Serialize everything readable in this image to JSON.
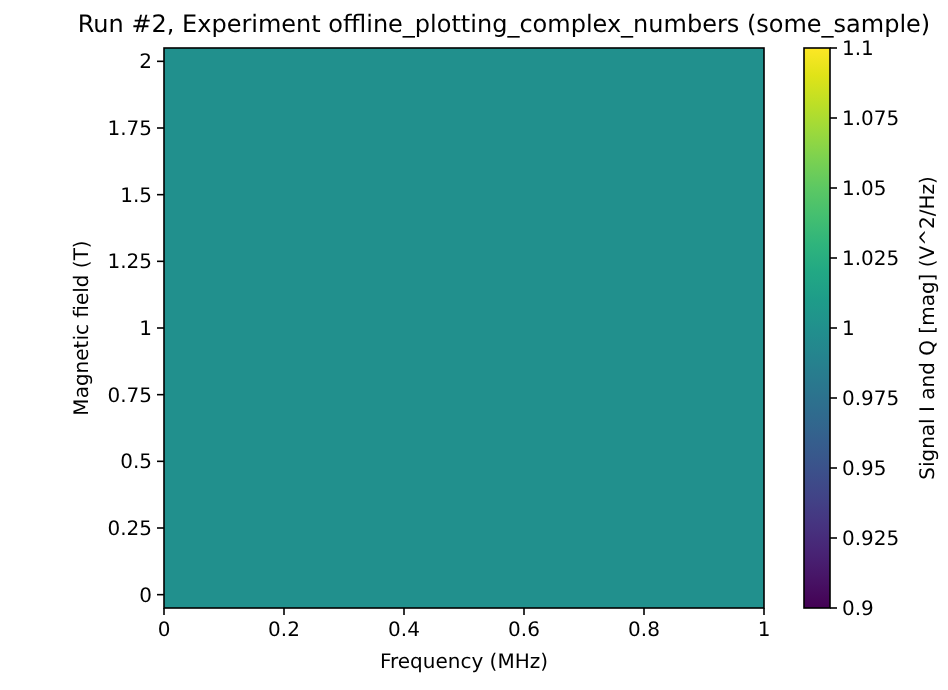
{
  "chart_data": {
    "type": "heatmap",
    "title": "Run #2, Experiment offline_plotting_complex_numbers (some_sample)",
    "xlabel": "Frequency (MHz)",
    "ylabel": "Magnetic field (T)",
    "clabel": "Signal I and Q [mag] (V^2/Hz)",
    "cells": [
      [
        1
      ]
    ],
    "xlim": [
      0,
      1
    ],
    "xticks": [
      0,
      0.2,
      0.4,
      0.6,
      0.8,
      1
    ],
    "ylim": [
      -0.05,
      2.05
    ],
    "yticks": [
      0,
      0.25,
      0.5,
      0.75,
      1,
      1.25,
      1.5,
      1.75,
      2
    ],
    "clim": [
      0.9,
      1.1
    ],
    "cticks": [
      0.9,
      0.925,
      0.95,
      0.975,
      1,
      1.025,
      1.05,
      1.075,
      1.1
    ]
  }
}
